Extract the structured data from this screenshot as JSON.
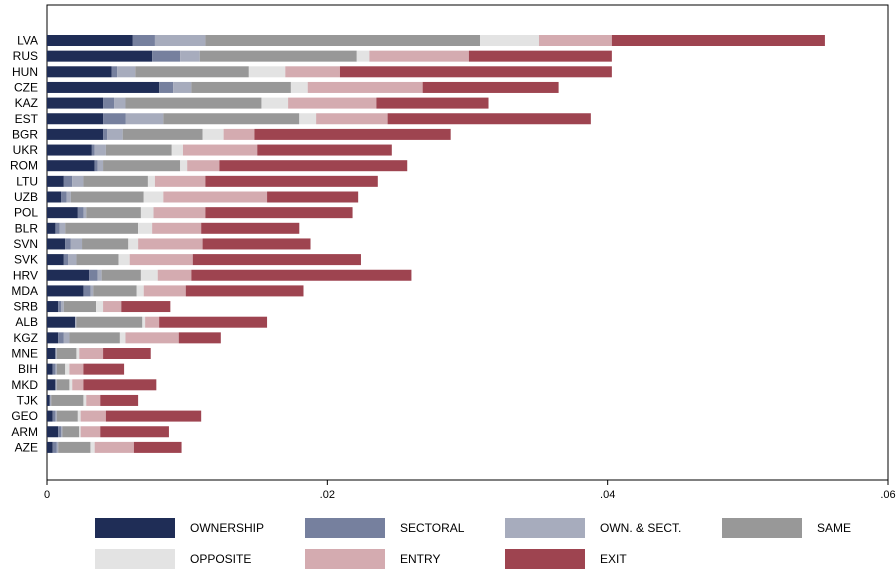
{
  "chart_data": {
    "type": "bar",
    "orientation": "horizontal",
    "stacked": true,
    "categories": [
      "LVA",
      "RUS",
      "HUN",
      "CZE",
      "KAZ",
      "EST",
      "BGR",
      "UKR",
      "ROM",
      "LTU",
      "UZB",
      "POL",
      "BLR",
      "SVN",
      "SVK",
      "HRV",
      "MDA",
      "SRB",
      "ALB",
      "KGZ",
      "MNE",
      "BIH",
      "MKD",
      "TJK",
      "GEO",
      "ARM",
      "AZE"
    ],
    "series": [
      {
        "name": "OWNERSHIP",
        "color": "#1f2d56",
        "values": [
          0.0061,
          0.0075,
          0.0046,
          0.008,
          0.004,
          0.004,
          0.004,
          0.0032,
          0.0034,
          0.0012,
          0.001,
          0.0022,
          0.0006,
          0.0013,
          0.0012,
          0.003,
          0.0026,
          0.0008,
          0.002,
          0.0008,
          0.0006,
          0.0004,
          0.0006,
          0.0002,
          0.0004,
          0.0008,
          0.0004
        ]
      },
      {
        "name": "SECTORAL",
        "color": "#76809e",
        "values": [
          0.0016,
          0.002,
          0.0004,
          0.001,
          0.0008,
          0.0016,
          0.0003,
          0.0002,
          0.0002,
          0.0006,
          0.0004,
          0.0004,
          0.0003,
          0.0004,
          0.0003,
          0.0006,
          0.0005,
          0.0002,
          0.0,
          0.0004,
          0.0,
          0.0002,
          0.0,
          0.0,
          0.0002,
          0.0002,
          0.0003
        ]
      },
      {
        "name": "OWN. & SECT.",
        "color": "#a7acbd",
        "values": [
          0.0036,
          0.0014,
          0.0013,
          0.0013,
          0.0008,
          0.0027,
          0.0011,
          0.0008,
          0.0004,
          0.0008,
          0.0003,
          0.0002,
          0.0004,
          0.0008,
          0.0006,
          0.0003,
          0.0002,
          0.0002,
          0.0001,
          0.0004,
          0.0001,
          0.0001,
          0.0001,
          0.0001,
          0.0001,
          0.0001,
          0.0001
        ]
      },
      {
        "name": "SAME",
        "color": "#989898",
        "values": [
          0.0196,
          0.0112,
          0.0081,
          0.0071,
          0.0097,
          0.0097,
          0.0057,
          0.0047,
          0.0055,
          0.0046,
          0.0052,
          0.0039,
          0.0052,
          0.0033,
          0.003,
          0.0028,
          0.0031,
          0.0023,
          0.0047,
          0.0036,
          0.0014,
          0.0006,
          0.0009,
          0.0023,
          0.0015,
          0.0012,
          0.0023
        ]
      },
      {
        "name": "OPPOSITE",
        "color": "#e3e3e3",
        "values": [
          0.0042,
          0.0009,
          0.0026,
          0.0012,
          0.0019,
          0.0012,
          0.0015,
          0.0008,
          0.0005,
          0.0005,
          0.0014,
          0.0009,
          0.001,
          0.0007,
          0.0008,
          0.0012,
          0.0005,
          0.0005,
          0.0002,
          0.0004,
          0.0002,
          0.0003,
          0.0002,
          0.0002,
          0.0002,
          0.0001,
          0.0003
        ]
      },
      {
        "name": "ENTRY",
        "color": "#d4abb0",
        "values": [
          0.0052,
          0.0071,
          0.0039,
          0.0082,
          0.0063,
          0.0051,
          0.0022,
          0.0053,
          0.0023,
          0.0036,
          0.0074,
          0.0037,
          0.0035,
          0.0046,
          0.0045,
          0.0024,
          0.003,
          0.0013,
          0.001,
          0.0038,
          0.0017,
          0.001,
          0.0008,
          0.001,
          0.0018,
          0.0014,
          0.0028
        ]
      },
      {
        "name": "EXIT",
        "color": "#9e4450",
        "values": [
          0.0152,
          0.0102,
          0.0194,
          0.0097,
          0.008,
          0.0145,
          0.014,
          0.0096,
          0.0134,
          0.0123,
          0.0065,
          0.0105,
          0.007,
          0.0077,
          0.012,
          0.0157,
          0.0084,
          0.0035,
          0.0077,
          0.003,
          0.0034,
          0.0029,
          0.0052,
          0.0027,
          0.0068,
          0.0049,
          0.0034
        ]
      }
    ],
    "xlim": [
      0,
      0.06
    ],
    "xticks": [
      0,
      0.02,
      0.04,
      0.06
    ],
    "xtick_labels": [
      "0",
      ".02",
      ".04",
      ".06"
    ],
    "grid": false,
    "legend_position": "bottom",
    "title": "",
    "xlabel": "",
    "ylabel": ""
  }
}
